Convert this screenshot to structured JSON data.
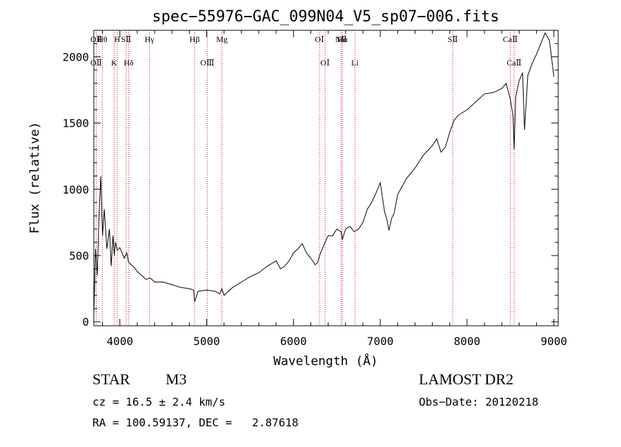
{
  "chart_data": {
    "type": "line",
    "title": "spec−55976−GAC_099N04_V5_sp07−006.fits",
    "xlabel": "Wavelength (Å)",
    "ylabel": "Flux (relative)",
    "xlim": [
      3700,
      9050
    ],
    "ylim": [
      -30,
      2200
    ],
    "x_ticks": [
      4000,
      5000,
      6000,
      7000,
      8000,
      9000
    ],
    "y_ticks": [
      0,
      500,
      1000,
      1500,
      2000
    ],
    "grid": false,
    "legend": "none",
    "line_color": "#000000",
    "marker_color": "#cc0000",
    "series": [
      {
        "x": [
          3700,
          3720,
          3740,
          3760,
          3780,
          3800,
          3820,
          3850,
          3880,
          3900,
          3920,
          3935,
          3950,
          3970,
          4000,
          4050,
          4080,
          4100,
          4150,
          4200,
          4250,
          4300,
          4350,
          4400,
          4500,
          4600,
          4700,
          4800,
          4850,
          4861,
          4900,
          5000,
          5100,
          5150,
          5175,
          5200,
          5300,
          5400,
          5500,
          5600,
          5700,
          5800,
          5850,
          5900,
          5950,
          6000,
          6050,
          6100,
          6150,
          6200,
          6250,
          6280,
          6300,
          6350,
          6400,
          6450,
          6500,
          6550,
          6563,
          6600,
          6650,
          6700,
          6750,
          6800,
          6850,
          6900,
          6950,
          7000,
          7050,
          7080,
          7100,
          7130,
          7160,
          7200,
          7250,
          7300,
          7400,
          7500,
          7600,
          7650,
          7700,
          7750,
          7800,
          7850,
          7900,
          8000,
          8100,
          8200,
          8300,
          8400,
          8450,
          8498,
          8530,
          8542,
          8560,
          8600,
          8640,
          8662,
          8700,
          8750,
          8800,
          8850,
          8900,
          8950,
          9000
        ],
        "y": [
          50,
          550,
          350,
          800,
          1100,
          650,
          850,
          550,
          700,
          420,
          650,
          500,
          600,
          540,
          560,
          480,
          520,
          450,
          420,
          380,
          350,
          320,
          330,
          300,
          300,
          280,
          260,
          250,
          240,
          150,
          230,
          240,
          230,
          210,
          250,
          200,
          260,
          300,
          340,
          370,
          420,
          460,
          400,
          420,
          460,
          520,
          550,
          590,
          520,
          480,
          430,
          450,
          500,
          580,
          650,
          650,
          700,
          680,
          620,
          700,
          720,
          680,
          700,
          750,
          850,
          900,
          970,
          1050,
          830,
          760,
          690,
          780,
          820,
          960,
          1020,
          1080,
          1160,
          1260,
          1330,
          1380,
          1280,
          1320,
          1430,
          1520,
          1560,
          1600,
          1660,
          1720,
          1730,
          1760,
          1800,
          1680,
          1550,
          1300,
          1700,
          1820,
          1880,
          1450,
          1860,
          1950,
          2020,
          2100,
          2180,
          2120,
          1850
        ]
      }
    ],
    "line_markers": [
      {
        "x": 3727,
        "top": "OⅡ",
        "bottom": "OⅡ"
      },
      {
        "x": 3798,
        "top": "Hθ",
        "bottom": ""
      },
      {
        "x": 3934,
        "top": "",
        "bottom": "K"
      },
      {
        "x": 3969,
        "top": "H",
        "bottom": ""
      },
      {
        "x": 4072,
        "top": "SⅡ",
        "bottom": ""
      },
      {
        "x": 4102,
        "top": "",
        "bottom": "Hδ"
      },
      {
        "x": 4341,
        "top": "Hγ",
        "bottom": ""
      },
      {
        "x": 4861,
        "top": "Hβ",
        "bottom": ""
      },
      {
        "x": 5007,
        "top": "",
        "bottom": "OⅢ"
      },
      {
        "x": 5175,
        "top": "Mg",
        "bottom": ""
      },
      {
        "x": 6300,
        "top": "OⅠ",
        "bottom": ""
      },
      {
        "x": 6364,
        "top": "",
        "bottom": "OⅠ"
      },
      {
        "x": 6548,
        "top": "NⅡ",
        "bottom": ""
      },
      {
        "x": 6563,
        "top": "Hα",
        "bottom": ""
      },
      {
        "x": 6708,
        "top": "",
        "bottom": "Li"
      },
      {
        "x": 7835,
        "top": "SⅡ",
        "bottom": ""
      },
      {
        "x": 8498,
        "top": "CaⅡ",
        "bottom": ""
      },
      {
        "x": 8542,
        "top": "",
        "bottom": "CaⅡ"
      }
    ]
  },
  "info": {
    "obj_class": "STAR",
    "subclass": "M3",
    "survey": "LAMOST DR2",
    "redshift": "cz = 16.5 ± 2.4 km/s",
    "obs_date": "Obs−Date: 20120218",
    "coords": "RA = 100.59137, DEC =   2.87618"
  }
}
